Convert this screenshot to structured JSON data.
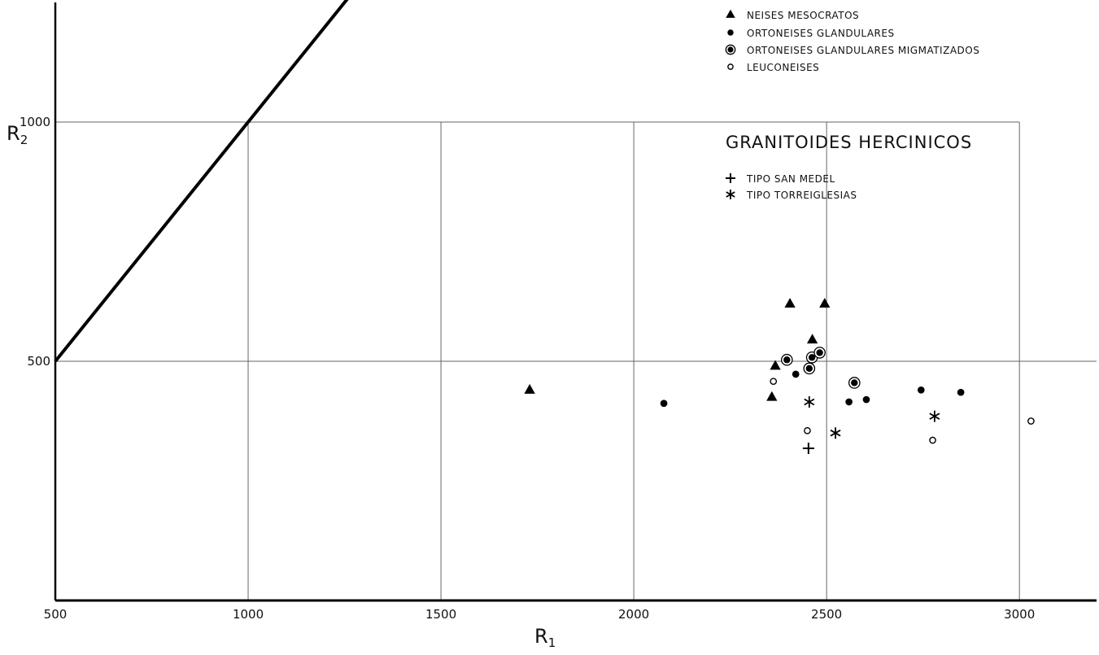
{
  "chart_data": {
    "type": "scatter",
    "title": "",
    "xlabel": "R",
    "xlabel_sub": "1",
    "ylabel": "R",
    "ylabel_sub": "2",
    "xlim": [
      500,
      3200
    ],
    "ylim": [
      0,
      1250
    ],
    "x_ticks": [
      {
        "value": 500,
        "label": "500"
      },
      {
        "value": 1000,
        "label": "1000"
      },
      {
        "value": 1500,
        "label": "1500"
      },
      {
        "value": 2000,
        "label": "2000"
      },
      {
        "value": 2500,
        "label": "2500"
      },
      {
        "value": 3000,
        "label": "3000"
      }
    ],
    "y_ticks": [
      {
        "value": 500,
        "label": "500"
      },
      {
        "value": 1000,
        "label": "1000"
      }
    ],
    "reference_line": [
      [
        500,
        500
      ],
      [
        1500,
        1500
      ]
    ],
    "legend_position": "top-right",
    "legend_heading": "GRANITOIDES HERCINICOS",
    "series": [
      {
        "name": "NEISES MESOCRATOS",
        "marker": "triangle",
        "points": [
          [
            1730,
            440
          ],
          [
            2358,
            425
          ],
          [
            2367,
            490
          ],
          [
            2405,
            620
          ],
          [
            2463,
            545
          ],
          [
            2495,
            620
          ]
        ]
      },
      {
        "name": "ORTONEISES GLANDULARES",
        "marker": "filled-circle",
        "points": [
          [
            2078,
            412
          ],
          [
            2420,
            473
          ],
          [
            2558,
            415
          ],
          [
            2603,
            420
          ],
          [
            2745,
            440
          ],
          [
            2848,
            435
          ]
        ]
      },
      {
        "name": "ORTONEISES GLANDULARES MIGMATIZADOS",
        "marker": "circled-dot",
        "points": [
          [
            2397,
            503
          ],
          [
            2455,
            485
          ],
          [
            2462,
            508
          ],
          [
            2482,
            518
          ],
          [
            2572,
            455
          ]
        ]
      },
      {
        "name": "LEUCONEISES",
        "marker": "open-circle",
        "points": [
          [
            2362,
            458
          ],
          [
            2450,
            355
          ],
          [
            2775,
            335
          ],
          [
            3030,
            375
          ]
        ]
      },
      {
        "name": "TIPO SAN MEDEL",
        "marker": "plus",
        "points": [
          [
            2453,
            318
          ]
        ]
      },
      {
        "name": "TIPO TORREIGLESIAS",
        "marker": "asterisk",
        "points": [
          [
            2455,
            415
          ],
          [
            2523,
            350
          ],
          [
            2780,
            385
          ]
        ]
      }
    ]
  }
}
